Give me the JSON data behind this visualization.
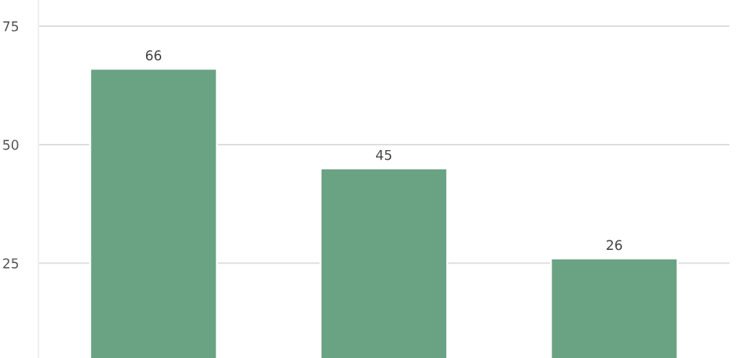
{
  "chart_data": {
    "type": "bar",
    "categories": [
      null,
      null,
      null
    ],
    "values": [
      66,
      45,
      26
    ],
    "color": "#6aa284",
    "ylim": [
      5,
      80.5
    ],
    "yticks": [
      25,
      50,
      75
    ],
    "grid": "y",
    "data_labels": true,
    "tick_labels": "y"
  }
}
